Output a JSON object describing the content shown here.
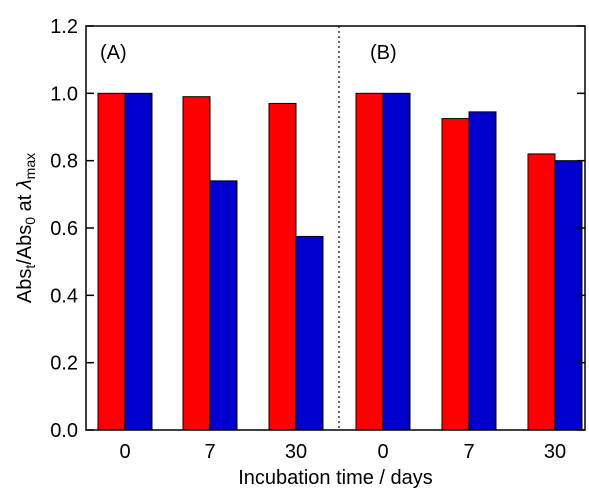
{
  "chart_data": {
    "type": "bar",
    "xlabel": "Incubation time / days",
    "ylabel": {
      "main": "Abs",
      "sub1": "t",
      "mid": "/Abs",
      "sub2": "0",
      "tail": " at ",
      "symbol": "λ",
      "sub3": "max"
    },
    "ylim": [
      0,
      1.2
    ],
    "yticks": [
      "0.0",
      "0.2",
      "0.4",
      "0.6",
      "0.8",
      "1.0",
      "1.2"
    ],
    "panels": [
      {
        "label": "(A)",
        "categories": [
          "0",
          "7",
          "30"
        ],
        "series": [
          {
            "color": "#ff0000",
            "values": [
              1.0,
              0.99,
              0.97
            ]
          },
          {
            "color": "#0000cc",
            "values": [
              1.0,
              0.74,
              0.575
            ]
          }
        ]
      },
      {
        "label": "(B)",
        "categories": [
          "0",
          "7",
          "30"
        ],
        "series": [
          {
            "color": "#ff0000",
            "values": [
              1.0,
              0.925,
              0.82
            ]
          },
          {
            "color": "#0000cc",
            "values": [
              1.0,
              0.945,
              0.8
            ]
          }
        ]
      }
    ],
    "divider": "dotted"
  }
}
